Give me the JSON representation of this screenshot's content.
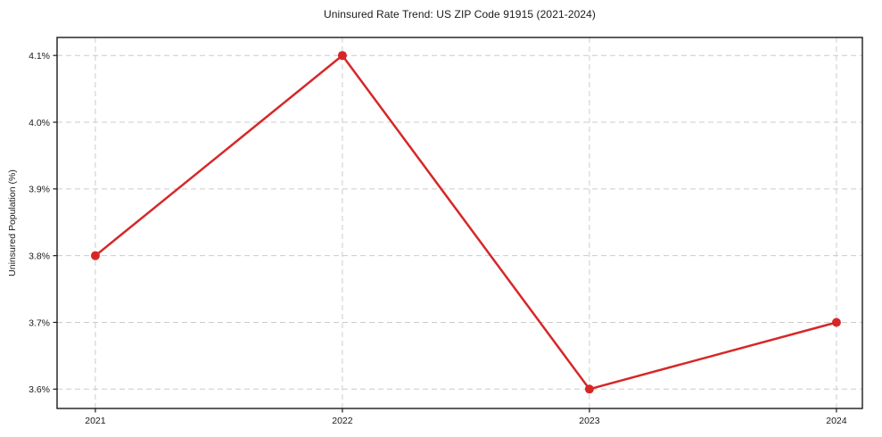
{
  "figure": {
    "background": "#ffffff"
  },
  "chart_data": {
    "type": "line",
    "title": "Uninsured Rate Trend: US ZIP Code 91915 (2021-2024)",
    "xlabel": "",
    "ylabel": "Uninsured Population (%)",
    "x": [
      2021,
      2022,
      2023,
      2024
    ],
    "x_tick_labels": [
      "2021",
      "2022",
      "2023",
      "2024"
    ],
    "series": [
      {
        "name": "uninsured-rate",
        "values": [
          3.8,
          4.1,
          3.6,
          3.7
        ],
        "color": "#d62728",
        "marker": "circle",
        "line_width": 2.5,
        "marker_radius": 5
      }
    ],
    "y_ticks": [
      3.6,
      3.7,
      3.8,
      3.9,
      4.0,
      4.1
    ],
    "y_tick_labels": [
      "3.6%",
      "3.7%",
      "3.8%",
      "3.9%",
      "4.0%",
      "4.1%"
    ],
    "xlim": [
      2020.845,
      2024.105
    ],
    "ylim": [
      3.571,
      4.127
    ],
    "grid": true,
    "grid_style": "dashed",
    "legend": false,
    "colors": {
      "grid": "#cccccc",
      "spine": "#1a1a1a",
      "tick_text": "#1a1a1a"
    }
  }
}
